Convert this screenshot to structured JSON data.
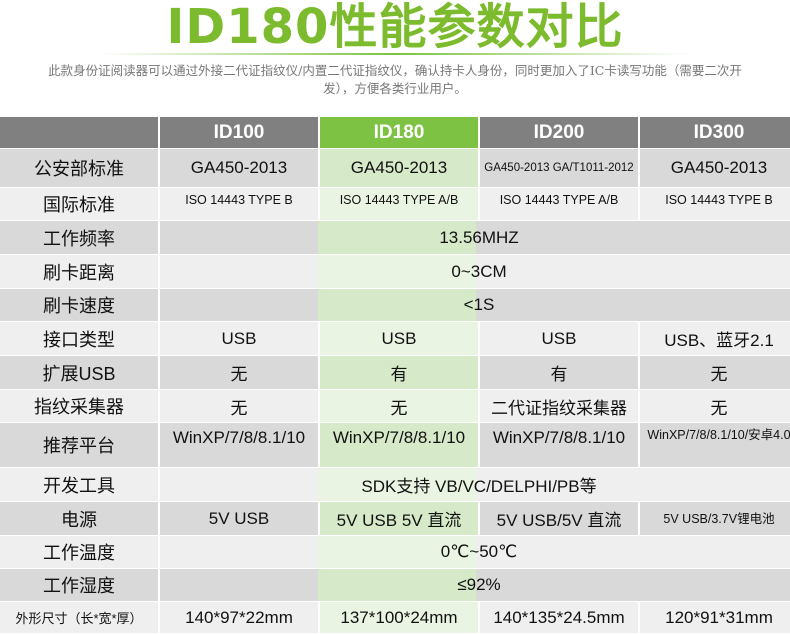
{
  "title": "ID180性能参数对比",
  "description": "此款身份证阅读器可以通过外接二代证指纹仪/内置二代证指纹仪，确认持卡人身份，同时更加入了IC卡读写功能（需要二次开发），方便各类行业用户。",
  "colors": {
    "accent": "#7dc242",
    "header": "#808080"
  },
  "columns": [
    "",
    "ID100",
    "ID180",
    "ID200",
    "ID300"
  ],
  "rows": [
    {
      "label": "公安部标准",
      "values": [
        "GA450-2013",
        "GA450-2013",
        "GA450-2013 GA/T1011-2012",
        "GA450-2013"
      ]
    },
    {
      "label": "国际标准",
      "values": [
        "ISO 14443 TYPE B",
        "ISO 14443 TYPE A/B",
        "ISO 14443 TYPE A/B",
        "ISO 14443 TYPE B"
      ]
    },
    {
      "label": "工作频率",
      "merged": "13.56MHZ"
    },
    {
      "label": "刷卡距离",
      "merged": "0~3CM"
    },
    {
      "label": "刷卡速度",
      "merged": "<1S"
    },
    {
      "label": "接口类型",
      "values": [
        "USB",
        "USB",
        "USB",
        "USB、蓝牙2.1"
      ]
    },
    {
      "label": "扩展USB",
      "values": [
        "无",
        "有",
        "有",
        "无"
      ]
    },
    {
      "label": "指纹采集器",
      "values": [
        "无",
        "无",
        "二代证指纹采集器",
        "无"
      ]
    },
    {
      "label": "推荐平台",
      "values": [
        "WinXP/7/8/8.1/10",
        "WinXP/7/8/8.1/10",
        "WinXP/7/8/8.1/10",
        "WinXP/7/8/8.1/10/安卓4.0"
      ]
    },
    {
      "label": "开发工具",
      "merged": "SDK支持 VB/VC/DELPHI/PB等"
    },
    {
      "label": "电源",
      "values": [
        "5V USB",
        "5V USB 5V 直流",
        "5V USB/5V 直流",
        "5V USB/3.7V锂电池"
      ]
    },
    {
      "label": "工作温度",
      "merged": "0℃~50℃"
    },
    {
      "label": "工作湿度",
      "merged": "≤92%"
    },
    {
      "label": "外形尺寸（长*宽*厚）",
      "values": [
        "140*97*22mm",
        "137*100*24mm",
        "140*135*24.5mm",
        "120*91*31mm"
      ]
    }
  ]
}
